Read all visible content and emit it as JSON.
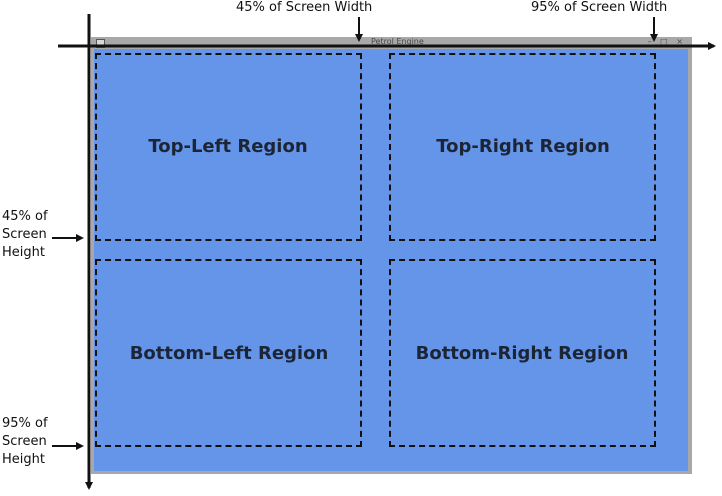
{
  "annotations": {
    "width_45": "45% of Screen Width",
    "width_95": "95% of Screen Width",
    "height_45_line1": "45% of",
    "height_45_line2": "Screen",
    "height_45_line3": "Height",
    "height_95_line1": "95% of",
    "height_95_line2": "Screen",
    "height_95_line3": "Height"
  },
  "window": {
    "title": "Petrol Engine",
    "buttons": "– □ ×"
  },
  "regions": {
    "top_left": "Top-Left Region",
    "top_right": "Top-Right Region",
    "bottom_left": "Bottom-Left Region",
    "bottom_right": "Bottom-Right Region"
  },
  "colors": {
    "client_area": "#6495e8",
    "window_frame": "#a8a8a8",
    "arrows": "#111111"
  }
}
